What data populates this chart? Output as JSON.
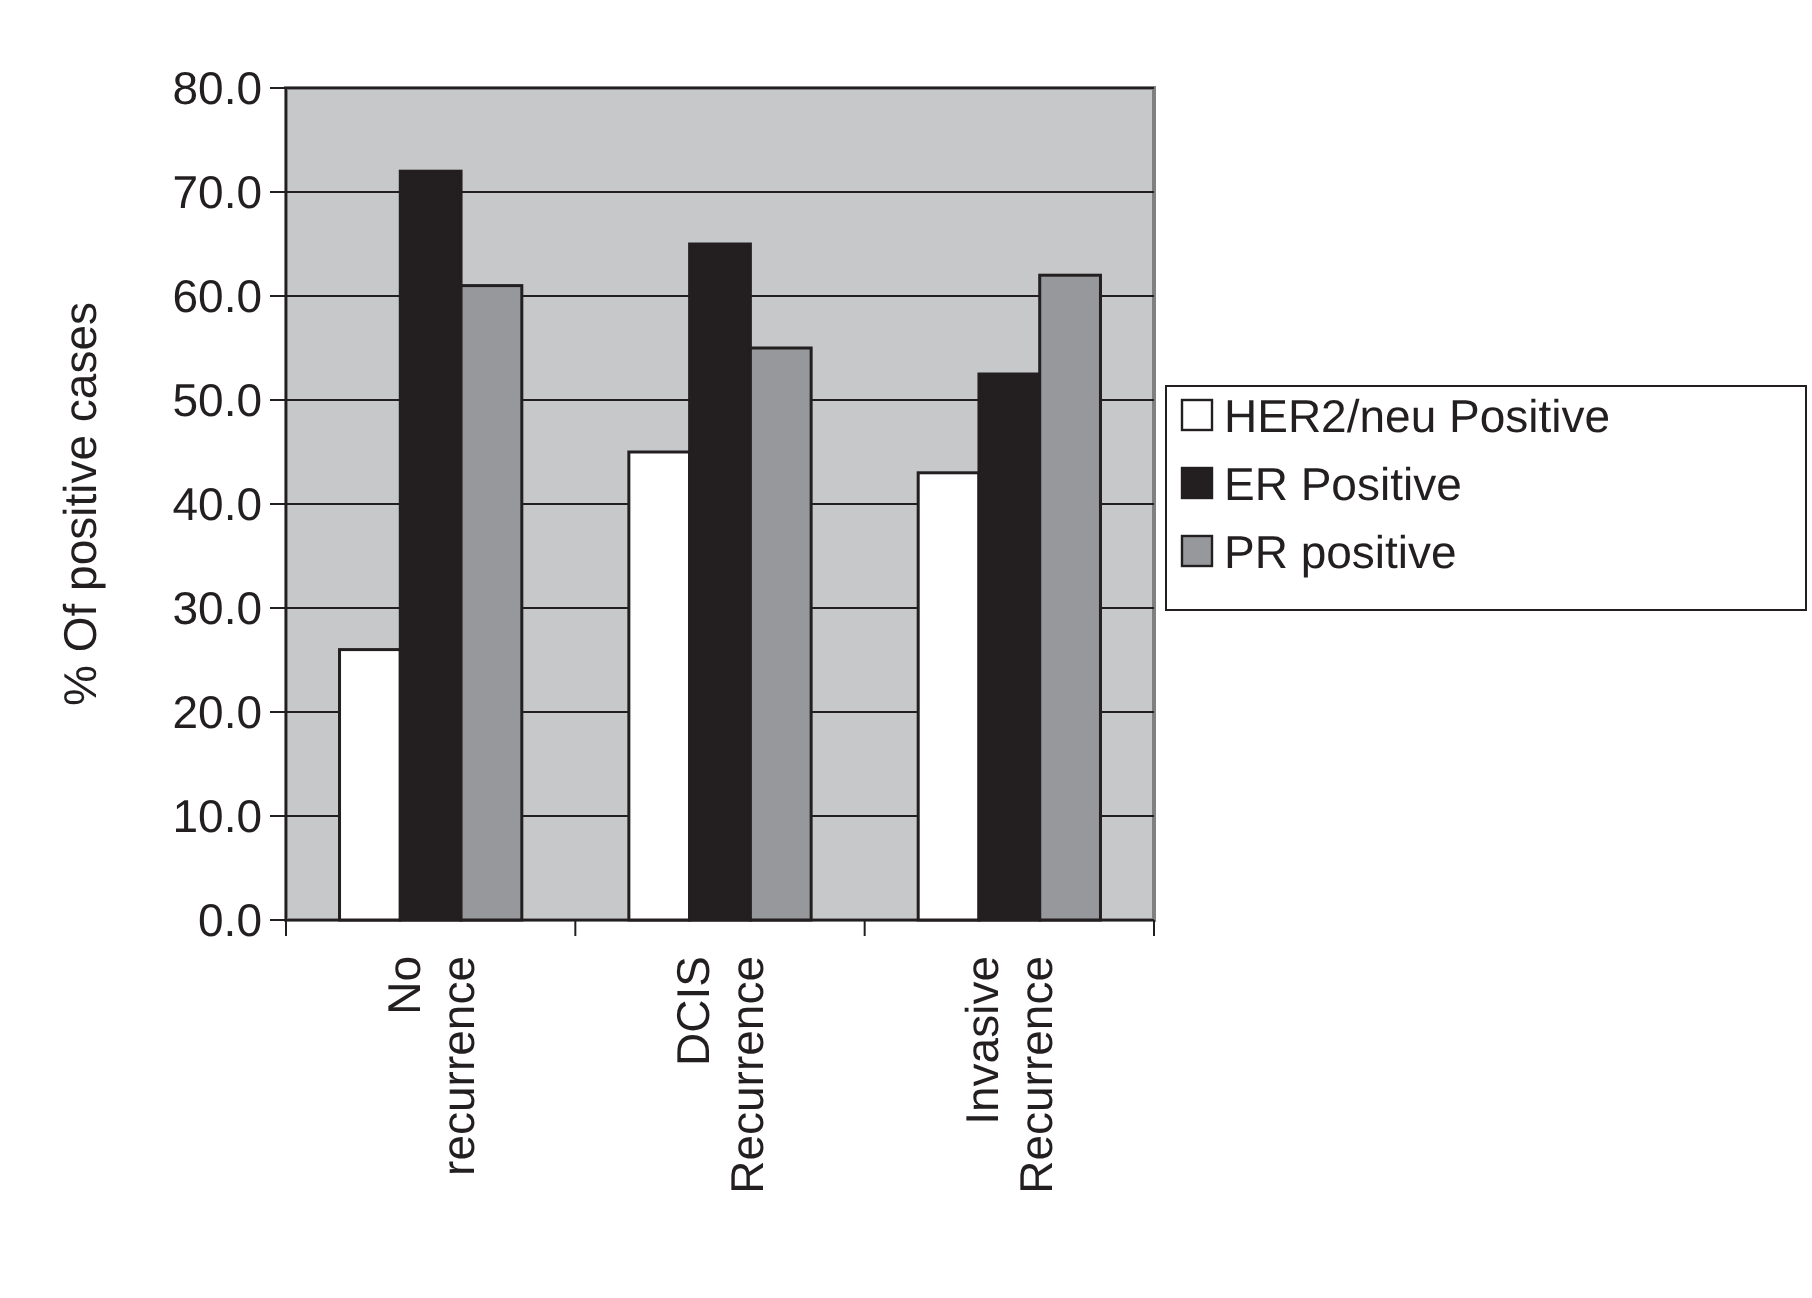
{
  "chart_data": {
    "type": "bar",
    "ylabel": "% Of positive cases",
    "categories": [
      "No recurrence",
      "DCIS Recurrence",
      "Invasive Recurrence"
    ],
    "series": [
      {
        "name": "HER2/neu Positive",
        "color": "#ffffff",
        "values": [
          26,
          45,
          43
        ]
      },
      {
        "name": "ER Positive",
        "color": "#231f20",
        "values": [
          72,
          65,
          52.5
        ]
      },
      {
        "name": "PR positive",
        "color": "#97989c",
        "values": [
          61,
          55,
          62
        ]
      }
    ],
    "ylim": [
      0,
      80
    ],
    "yticks": [
      {
        "value": 0,
        "label": "0.0"
      },
      {
        "value": 10,
        "label": "10.0"
      },
      {
        "value": 20,
        "label": "20.0"
      },
      {
        "value": 30,
        "label": "30.0"
      },
      {
        "value": 40,
        "label": "40.0"
      },
      {
        "value": 50,
        "label": "50.0"
      },
      {
        "value": 60,
        "label": "60.0"
      },
      {
        "value": 70,
        "label": "70.0"
      },
      {
        "value": 80,
        "label": "80.0"
      }
    ],
    "grid": "y",
    "legend": "right"
  }
}
